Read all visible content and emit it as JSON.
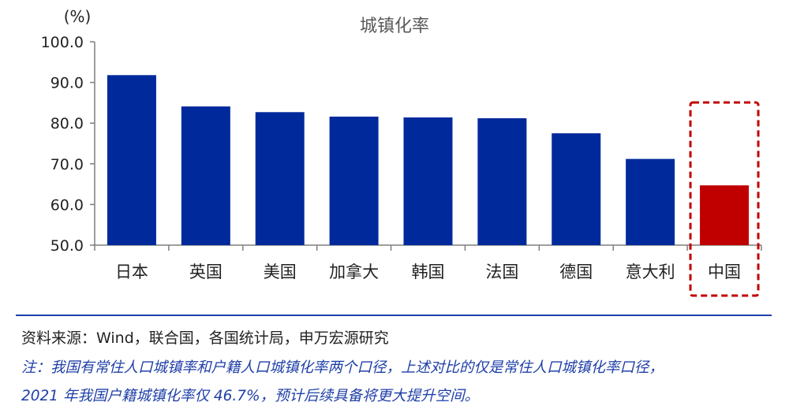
{
  "chart_data": {
    "type": "bar",
    "title": "城镇化率",
    "unit_label": "(%)",
    "categories": [
      "日本",
      "英国",
      "美国",
      "加拿大",
      "韩国",
      "法国",
      "德国",
      "意大利",
      "中国"
    ],
    "values": [
      91.8,
      84.1,
      82.7,
      81.6,
      81.4,
      81.2,
      77.5,
      71.2,
      64.7
    ],
    "ylim": [
      50,
      100
    ],
    "yticks": [
      "50.0",
      "60.0",
      "70.0",
      "80.0",
      "90.0",
      "100.0"
    ],
    "grid": false,
    "colors": {
      "bar": "#002a9c",
      "highlight": "#c00000",
      "highlight_box": "#c00000",
      "axis": "#7f7f7f"
    },
    "highlight_category": "中国"
  },
  "footer": {
    "source": "资料来源：Wind，联合国，各国统计局，申万宏源研究",
    "note_line1": "注：我国有常住人口城镇率和户籍人口城镇化率两个口径，上述对比的仅是常住人口城镇化率口径，",
    "note_line2": "2021 年我国户籍城镇化率仅 46.7%，预计后续具备将更大提升空间。"
  }
}
